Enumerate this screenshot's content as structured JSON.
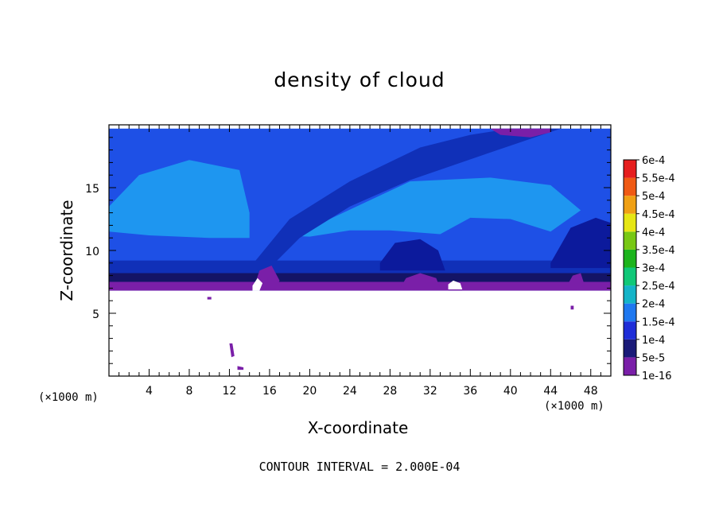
{
  "chart_data": {
    "type": "heatmap",
    "title": "density of cloud",
    "xlabel": "X-coordinate",
    "ylabel": "Z-coordinate",
    "x_unit": "(×1000 m)",
    "x_unit_right": "(×1000 m)",
    "footnote": "CONTOUR INTERVAL = 2.000E-04",
    "xlim": [
      0,
      50
    ],
    "ylim": [
      0,
      20
    ],
    "x_ticks": [
      4,
      8,
      12,
      16,
      20,
      24,
      28,
      32,
      36,
      40,
      44,
      48
    ],
    "y_ticks": [
      5,
      10,
      15
    ],
    "colorbar": {
      "labels": [
        "1e-16",
        "5e-5",
        "1e-4",
        "1.5e-4",
        "2e-4",
        "2.5e-4",
        "3e-4",
        "3.5e-4",
        "4e-4",
        "4.5e-4",
        "5e-4",
        "5.5e-4",
        "6e-4"
      ],
      "colors": [
        "#7a1fa8",
        "#1a1a78",
        "#1f2ed8",
        "#1f78f0",
        "#14b4c8",
        "#10c878",
        "#1cb41c",
        "#78c814",
        "#e6e614",
        "#f0a014",
        "#f05a14",
        "#e61e1e",
        "#f08c8c"
      ]
    },
    "field_colors": {
      "ambient": "#1e50e6",
      "light": "#1e96f0",
      "dark": "#1030b8",
      "darker": "#0c1a9c",
      "edge": "#141466",
      "base": "#7a1fa8"
    },
    "cloud_base_z": 6.8,
    "cloud_top_z": 19.7,
    "note": ""
  }
}
